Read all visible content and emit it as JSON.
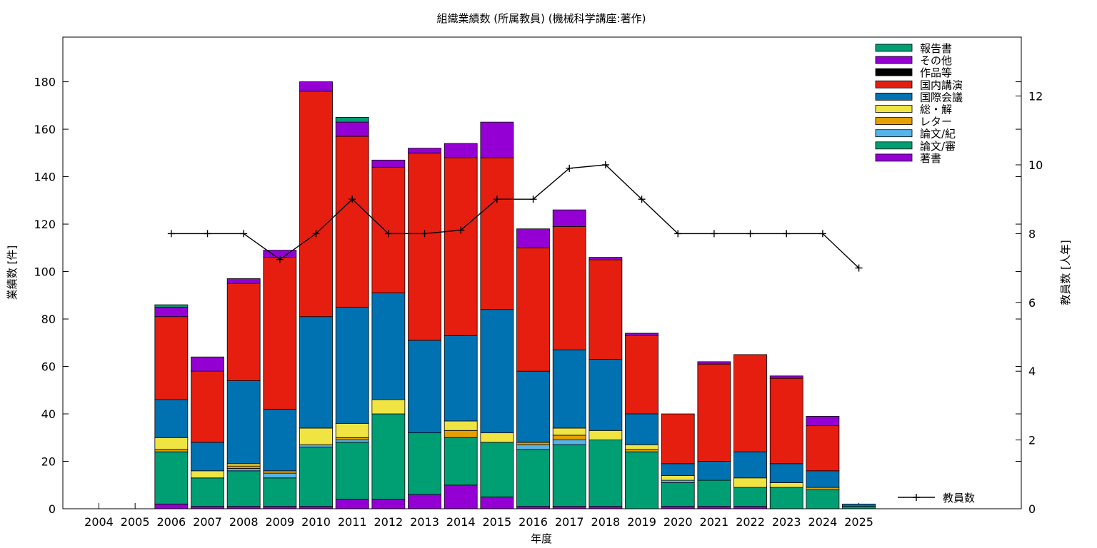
{
  "chart_data": {
    "type": "bar",
    "stacked": true,
    "title": "組織業績数 (所属教員) (機械科学講座:著作)",
    "xlabel": "年度",
    "ylabel": "業績数 [件]",
    "y2label": "教員数 [人年]",
    "ylim": [
      0,
      200
    ],
    "yticks": [
      0,
      20,
      40,
      60,
      80,
      100,
      120,
      140,
      160,
      180
    ],
    "y2lim": [
      0,
      13.7
    ],
    "y2ticks": [
      0,
      2,
      4,
      6,
      8,
      10,
      12
    ],
    "legend_position": "top-right",
    "categories": [
      "2004",
      "2005",
      "2006",
      "2007",
      "2008",
      "2009",
      "2010",
      "2011",
      "2012",
      "2013",
      "2014",
      "2015",
      "2016",
      "2017",
      "2018",
      "2019",
      "2020",
      "2021",
      "2022",
      "2023",
      "2024",
      "2025"
    ],
    "series": [
      {
        "name": "著書",
        "color": "#9400d3",
        "values": [
          0,
          0,
          2,
          1,
          1,
          1,
          1,
          4,
          4,
          6,
          10,
          5,
          1,
          1,
          1,
          0,
          1,
          1,
          1,
          0,
          0,
          0
        ]
      },
      {
        "name": "論文/審",
        "color": "#009e73",
        "values": [
          0,
          0,
          22,
          12,
          15,
          12,
          25,
          24,
          36,
          26,
          20,
          23,
          24,
          26,
          28,
          24,
          10,
          11,
          8,
          9,
          8,
          1
        ]
      },
      {
        "name": "論文/紀",
        "color": "#56b4e9",
        "values": [
          0,
          0,
          0,
          0,
          1,
          2,
          1,
          1,
          0,
          0,
          0,
          0,
          2,
          2,
          0,
          0,
          1,
          0,
          0,
          0,
          0,
          0
        ]
      },
      {
        "name": "レター",
        "color": "#e69f00",
        "values": [
          0,
          0,
          1,
          0,
          1,
          1,
          0,
          1,
          0,
          0,
          3,
          0,
          1,
          2,
          0,
          1,
          0,
          0,
          0,
          0,
          1,
          0
        ]
      },
      {
        "name": "総・解",
        "color": "#f0e442",
        "values": [
          0,
          0,
          5,
          3,
          1,
          0,
          7,
          6,
          6,
          0,
          4,
          4,
          0,
          3,
          4,
          2,
          2,
          0,
          4,
          2,
          0,
          0
        ]
      },
      {
        "name": "国際会議",
        "color": "#0072b2",
        "values": [
          0,
          0,
          16,
          12,
          35,
          26,
          47,
          49,
          45,
          39,
          36,
          52,
          30,
          33,
          30,
          13,
          5,
          8,
          11,
          8,
          7,
          1
        ]
      },
      {
        "name": "国内講演",
        "color": "#e51e10",
        "values": [
          0,
          0,
          35,
          30,
          41,
          64,
          95,
          72,
          53,
          79,
          75,
          64,
          52,
          52,
          42,
          33,
          21,
          41,
          41,
          36,
          19,
          0
        ]
      },
      {
        "name": "作品等",
        "color": "#000000",
        "values": [
          0,
          0,
          0,
          0,
          0,
          0,
          0,
          0,
          0,
          0,
          0,
          0,
          0,
          0,
          0,
          0,
          0,
          0,
          0,
          0,
          0,
          0
        ]
      },
      {
        "name": "その他",
        "color": "#9400d3",
        "values": [
          0,
          0,
          4,
          6,
          2,
          3,
          4,
          6,
          3,
          2,
          6,
          15,
          8,
          7,
          1,
          1,
          0,
          1,
          0,
          1,
          4,
          0
        ]
      },
      {
        "name": "報告書",
        "color": "#009e73",
        "values": [
          0,
          0,
          1,
          0,
          0,
          0,
          0,
          2,
          0,
          0,
          0,
          0,
          0,
          0,
          0,
          0,
          0,
          0,
          0,
          0,
          0,
          0
        ]
      }
    ],
    "legend_order": [
      "報告書",
      "その他",
      "作品等",
      "国内講演",
      "国際会議",
      "総・解",
      "レター",
      "論文/紀",
      "論文/審",
      "著書"
    ],
    "line": {
      "name": "教員数",
      "color": "#000000",
      "axis": "y2",
      "x": [
        "2006",
        "2007",
        "2008",
        "2009",
        "2010",
        "2011",
        "2012",
        "2013",
        "2014",
        "2015",
        "2016",
        "2017",
        "2018",
        "2019",
        "2020",
        "2021",
        "2022",
        "2023",
        "2024",
        "2025"
      ],
      "values": [
        8,
        8,
        8,
        7.25,
        8,
        9,
        8,
        8,
        8.1,
        9,
        9,
        9.9,
        10,
        9,
        8,
        8,
        8,
        8,
        8,
        7
      ]
    }
  }
}
